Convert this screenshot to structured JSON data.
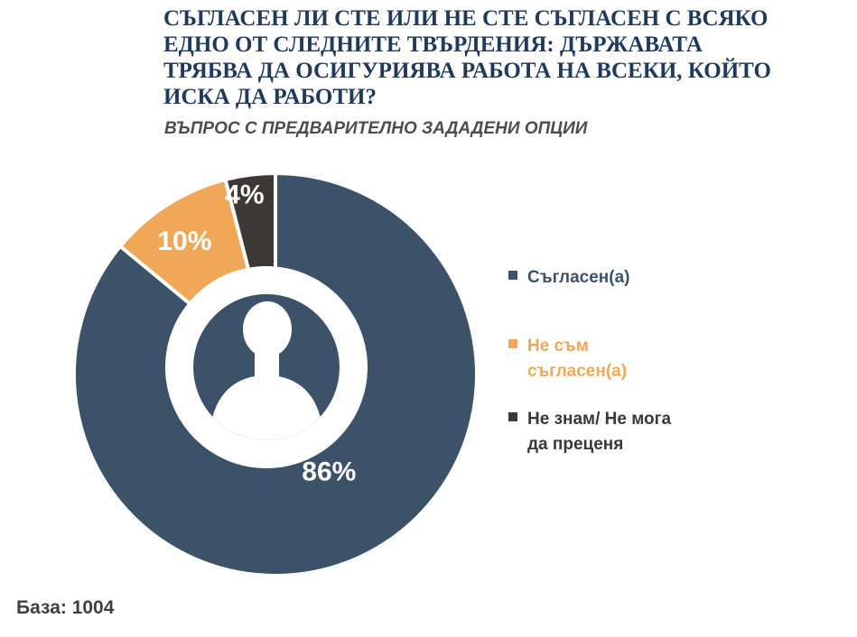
{
  "header": {
    "title": "СЪГЛАСЕН ЛИ СТЕ ИЛИ НЕ СТЕ СЪГЛАСЕН С ВСЯКО\nЕДНО ОТ СЛЕДНИТЕ ТВЪРДЕНИЯ: ДЪРЖАВАТА\nТРЯБВА ДА ОСИГУРИЯВА РАБОТА НА ВСЕКИ, КОЙТО\nИСКА ДА РАБОТИ?",
    "subtitle": "ВЪПРОС С ПРЕДВАРИТЕЛНО ЗАДАДЕНИ ОПЦИИ"
  },
  "footer": {
    "base_note": "База: 1004"
  },
  "colors": {
    "primary_blue": "#3C5268",
    "accent_orange": "#F0A858",
    "dark_gray": "#3B3836",
    "title_navy": "#1F3A5A",
    "subtitle_gray": "#4D4D4D",
    "base_note_gray": "#3F3F3F",
    "data_label_white": "#FFFFFF",
    "background": "#FFFFFF"
  },
  "chart_data": {
    "type": "pie",
    "style": "donut",
    "categories": [
      "Съгласен(а)",
      "Не съм съгласен(а)",
      "Не знам/ Не мога да преценя"
    ],
    "values": [
      86,
      10,
      4
    ],
    "data_labels": [
      "86%",
      "10%",
      "4%"
    ],
    "slice_colors": [
      "#3C5268",
      "#F0A858",
      "#3B3836"
    ],
    "start_angle_deg": 0,
    "direction": "clockwise",
    "legend_position": "right",
    "center_icon": "person-silhouette",
    "grid": false
  },
  "legend": {
    "items": [
      {
        "label": "Съгласен(а)",
        "display": "Съгласен(а)",
        "color": "#3C5268"
      },
      {
        "label": "Не съм съгласен(а)",
        "display": "Не съм\nсъгласен(а)",
        "color": "#F0A858"
      },
      {
        "label": "Не знам/ Не мога да преценя",
        "display": "Не знам/ Не мога\nда преценя",
        "color": "#3B3836"
      }
    ]
  }
}
